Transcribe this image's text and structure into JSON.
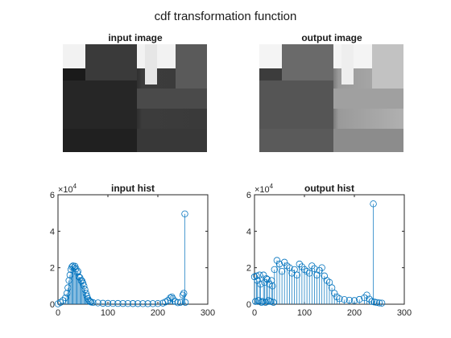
{
  "figure": {
    "title": "cdf transformation function"
  },
  "images": {
    "input": {
      "title": "input image"
    },
    "output": {
      "title": "output image"
    }
  },
  "chart_data": [
    {
      "type": "stem",
      "title": "input hist",
      "xlabel": "",
      "ylabel": "",
      "xlim": [
        0,
        300
      ],
      "ylim": [
        0,
        60000
      ],
      "xticks": [
        "0",
        "100",
        "200",
        "300"
      ],
      "yticks": [
        "0",
        "2",
        "4",
        "6"
      ],
      "y_exponent_base": "10",
      "y_exponent": "4",
      "color": "#0072BD",
      "x": [
        0,
        5,
        10,
        15,
        18,
        20,
        22,
        24,
        26,
        28,
        30,
        32,
        34,
        36,
        38,
        40,
        42,
        44,
        46,
        48,
        50,
        52,
        54,
        56,
        58,
        60,
        62,
        64,
        66,
        70,
        80,
        90,
        100,
        110,
        120,
        130,
        140,
        150,
        160,
        170,
        180,
        190,
        200,
        210,
        215,
        220,
        225,
        228,
        230,
        235,
        240,
        245,
        250,
        252,
        254,
        255
      ],
      "values": [
        200,
        1000,
        2000,
        3500,
        6000,
        9000,
        13000,
        16000,
        19000,
        20500,
        21000,
        20000,
        20800,
        19500,
        17500,
        18000,
        15000,
        14500,
        13000,
        12800,
        11500,
        10000,
        8000,
        6000,
        4500,
        3000,
        2000,
        1500,
        1200,
        900,
        700,
        500,
        450,
        420,
        400,
        380,
        350,
        330,
        320,
        300,
        290,
        300,
        350,
        600,
        1200,
        2000,
        3500,
        4000,
        3000,
        1500,
        800,
        1000,
        5000,
        6000,
        49500,
        1000
      ]
    },
    {
      "type": "stem",
      "title": "output hist",
      "xlabel": "",
      "ylabel": "",
      "xlim": [
        0,
        300
      ],
      "ylim": [
        0,
        60000
      ],
      "xticks": [
        "0",
        "100",
        "200",
        "300"
      ],
      "yticks": [
        "0",
        "2",
        "4",
        "6"
      ],
      "y_exponent_base": "10",
      "y_exponent": "4",
      "color": "#0072BD",
      "x": [
        0,
        2,
        4,
        6,
        8,
        10,
        12,
        14,
        16,
        18,
        20,
        22,
        24,
        26,
        28,
        30,
        32,
        34,
        36,
        38,
        40,
        45,
        50,
        55,
        60,
        65,
        70,
        75,
        80,
        85,
        90,
        95,
        100,
        105,
        110,
        115,
        120,
        125,
        130,
        135,
        140,
        145,
        150,
        155,
        160,
        165,
        170,
        180,
        190,
        200,
        210,
        220,
        225,
        230,
        235,
        238,
        240,
        245,
        250,
        255
      ],
      "values": [
        15000,
        1500,
        15500,
        13000,
        2000,
        16000,
        11000,
        1000,
        1500,
        16000,
        12000,
        1000,
        14000,
        13500,
        2000,
        11000,
        1500,
        13000,
        10000,
        1000,
        19000,
        24000,
        22000,
        18000,
        23000,
        21000,
        20000,
        17000,
        19000,
        16000,
        22000,
        20500,
        19000,
        18000,
        17000,
        21000,
        19500,
        16000,
        18500,
        20000,
        15500,
        13000,
        12000,
        9000,
        6000,
        4000,
        3000,
        2500,
        2200,
        2000,
        2600,
        3500,
        5000,
        2800,
        1500,
        55000,
        1200,
        900,
        700,
        600
      ]
    }
  ]
}
